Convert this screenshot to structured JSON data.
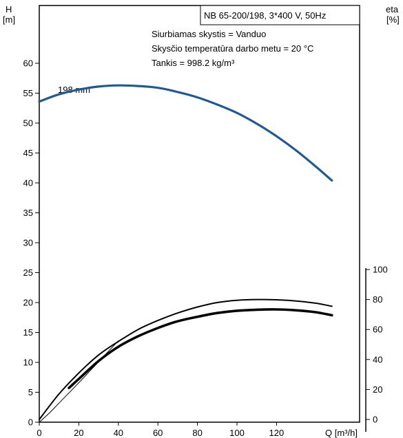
{
  "chart_data": {
    "type": "line",
    "title_box": "NB 65-200/198, 3*400 V, 50Hz",
    "info_lines": [
      "Siurbiamas skystis = Vanduo",
      "Skysčio temperatūra darbo metu = 20 °C",
      "Tankis = 998.2 kg/m³"
    ],
    "y_left_label": {
      "line1": "H",
      "line2": "[m]"
    },
    "y_right_label": {
      "line1": "eta",
      "line2": "[%]"
    },
    "x_label": "Q [m³/h]",
    "x_ticks": [
      0,
      20,
      40,
      60,
      80,
      100,
      120
    ],
    "y_ticks": [
      0,
      5,
      10,
      15,
      20,
      25,
      30,
      35,
      40,
      45,
      50,
      55,
      60
    ],
    "eta_ticks": [
      0,
      20,
      40,
      60,
      80,
      100
    ],
    "xlim": [
      0,
      162
    ],
    "ylim": [
      0,
      70
    ],
    "eta_lim": [
      0,
      100
    ],
    "grid": false,
    "curve_label": "198 mm",
    "colors": {
      "head": "#1f5a94",
      "eta": "#000000",
      "frame": "#000000"
    },
    "series": [
      {
        "axis": "H",
        "x": [
          0,
          10,
          20,
          30,
          40,
          50,
          60,
          70,
          80,
          90,
          100,
          110,
          120,
          130,
          140,
          148
        ],
        "values": [
          53.6,
          54.8,
          55.6,
          56.1,
          56.3,
          56.2,
          55.9,
          55.2,
          54.3,
          53.1,
          51.7,
          49.9,
          47.8,
          45.4,
          42.7,
          40.4
        ]
      },
      {
        "axis": "eta",
        "x": [
          0,
          10,
          20,
          30,
          40,
          50,
          60,
          70,
          80,
          90,
          100,
          110,
          120,
          130,
          140,
          148
        ],
        "values": [
          0,
          17,
          31,
          43,
          52,
          60,
          66,
          71,
          75,
          78,
          79.5,
          80,
          79.8,
          79,
          77.5,
          75.5
        ]
      },
      {
        "axis": "eta",
        "x": [
          15,
          20,
          30,
          40,
          50,
          60,
          70,
          80,
          90,
          100,
          110,
          120,
          130,
          140,
          148
        ],
        "values": [
          21,
          27,
          39,
          48.5,
          55.5,
          61,
          65.5,
          68.5,
          71,
          72.5,
          73.2,
          73.4,
          72.8,
          71.5,
          69.5
        ]
      },
      {
        "axis": "H",
        "x": [
          0,
          5,
          10,
          20,
          30,
          40
        ],
        "values": [
          0,
          1.5,
          3.2,
          6.6,
          10.1,
          13.6
        ]
      }
    ]
  }
}
